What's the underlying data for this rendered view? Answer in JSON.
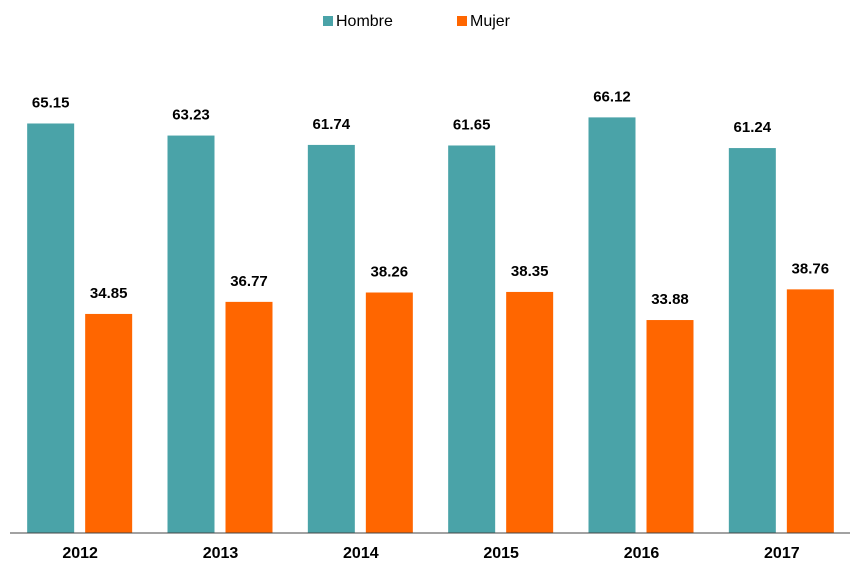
{
  "chart_data": {
    "type": "bar",
    "categories": [
      "2012",
      "2013",
      "2014",
      "2015",
      "2016",
      "2017"
    ],
    "series": [
      {
        "name": "Hombre",
        "color": "#4aa3a8",
        "values": [
          65.15,
          63.23,
          61.74,
          61.65,
          66.12,
          61.24
        ]
      },
      {
        "name": "Mujer",
        "color": "#ff6600",
        "values": [
          34.85,
          36.77,
          38.26,
          38.35,
          33.88,
          38.76
        ]
      }
    ],
    "ylim": [
      0,
      70
    ],
    "legend": "top"
  }
}
